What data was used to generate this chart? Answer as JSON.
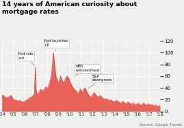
{
  "title": "14 years of American curiosity about\nmortgage rates",
  "source": "Source: Google Trends",
  "ylim": [
    0,
    120
  ],
  "yticks": [
    0,
    20,
    40,
    60,
    80,
    100,
    120
  ],
  "xtick_labels": [
    "'04",
    "'05",
    "'06",
    "'07",
    "'08",
    "'09",
    "'10",
    "'11",
    "'12",
    "'13",
    "'14",
    "'15",
    "'16",
    "'17",
    "'18"
  ],
  "fill_color": "#e8534a",
  "line_color": "#c0392b",
  "bg_color": "#f0efed",
  "grid_color": "#ffffff",
  "data_y": [
    28,
    26,
    27,
    25,
    24,
    22,
    24,
    23,
    25,
    26,
    27,
    25,
    22,
    20,
    18,
    20,
    19,
    18,
    17,
    18,
    19,
    17,
    16,
    15,
    17,
    16,
    18,
    19,
    20,
    21,
    22,
    24,
    23,
    25,
    26,
    28,
    30,
    75,
    35,
    30,
    28,
    32,
    35,
    38,
    36,
    34,
    36,
    38,
    40,
    42,
    38,
    40,
    45,
    50,
    55,
    65,
    80,
    100,
    85,
    70,
    58,
    55,
    50,
    48,
    55,
    60,
    55,
    52,
    50,
    48,
    55,
    58,
    60,
    58,
    56,
    52,
    48,
    45,
    42,
    40,
    38,
    36,
    35,
    32,
    30,
    32,
    36,
    38,
    35,
    30,
    37,
    38,
    40,
    37,
    33,
    30,
    28,
    26,
    25,
    24,
    28,
    30,
    32,
    30,
    28,
    26,
    25,
    24,
    26,
    27,
    25,
    23,
    22,
    21,
    20,
    22,
    21,
    20,
    19,
    18,
    20,
    19,
    18,
    17,
    16,
    17,
    18,
    19,
    17,
    16,
    15,
    14,
    15,
    16,
    17,
    15,
    14,
    13,
    14,
    15,
    16,
    14,
    13,
    12,
    13,
    14,
    13,
    12,
    11,
    12,
    13,
    14,
    12,
    11,
    10,
    12,
    13,
    14,
    12,
    11,
    10,
    12,
    13,
    11,
    10,
    11,
    12,
    10,
    9,
    10,
    11,
    9,
    8,
    9,
    10,
    8
  ]
}
